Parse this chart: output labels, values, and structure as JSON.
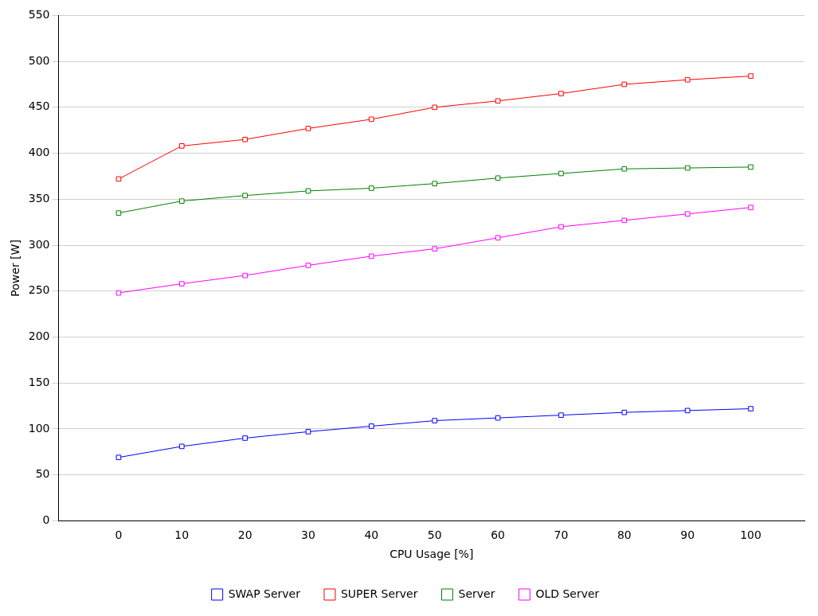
{
  "chart_data": {
    "type": "line",
    "xlabel": "CPU Usage [%]",
    "ylabel": "Power [W]",
    "x": [
      0,
      10,
      20,
      30,
      40,
      50,
      60,
      70,
      80,
      90,
      100
    ],
    "xlim": [
      -9.5,
      108.5
    ],
    "xticks": [
      0,
      10,
      20,
      30,
      40,
      50,
      60,
      70,
      80,
      90,
      100
    ],
    "ylim": [
      0,
      550
    ],
    "yticks": [
      0,
      50,
      100,
      150,
      200,
      250,
      300,
      350,
      400,
      450,
      500,
      550
    ],
    "grid": "y",
    "legend": "bottom",
    "marker": "square",
    "line_style": "solid",
    "series": [
      {
        "name": "SWAP Server",
        "color": "#0000ff",
        "values": [
          69,
          81,
          90,
          97,
          103,
          109,
          112,
          115,
          118,
          120,
          122
        ]
      },
      {
        "name": "SUPER Server",
        "color": "#ff0000",
        "values": [
          372,
          408,
          415,
          427,
          437,
          450,
          457,
          465,
          475,
          480,
          484
        ]
      },
      {
        "name": "Server",
        "color": "#008000",
        "values": [
          335,
          348,
          354,
          359,
          362,
          367,
          373,
          378,
          383,
          384,
          385
        ]
      },
      {
        "name": "OLD Server",
        "color": "#ff00ff",
        "values": [
          248,
          258,
          267,
          278,
          288,
          296,
          308,
          320,
          327,
          334,
          341
        ]
      }
    ]
  }
}
